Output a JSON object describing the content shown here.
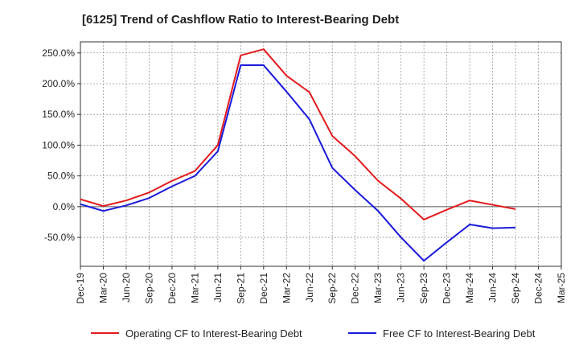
{
  "chart_data": {
    "type": "line",
    "title": "[6125]  Trend of Cashflow Ratio to Interest-Bearing Debt",
    "xlabel": "",
    "ylabel": "",
    "x": [
      "Dec-19",
      "Mar-20",
      "Jun-20",
      "Sep-20",
      "Dec-20",
      "Mar-21",
      "Jun-21",
      "Sep-21",
      "Dec-21",
      "Mar-22",
      "Jun-22",
      "Sep-22",
      "Dec-22",
      "Mar-23",
      "Jun-23",
      "Sep-23",
      "Dec-23",
      "Mar-24",
      "Jun-24",
      "Sep-24",
      "Dec-24",
      "Mar-25"
    ],
    "ylim": [
      -97,
      268
    ],
    "yticks": [
      -50,
      0,
      50,
      100,
      150,
      200,
      250
    ],
    "ytick_labels": [
      "-50.0%",
      "0.0%",
      "50.0%",
      "100.0%",
      "150.0%",
      "200.0%",
      "250.0%"
    ],
    "grid": true,
    "legend_position": "bottom",
    "series": [
      {
        "name": "Operating CF to Interest-Bearing Debt",
        "color": "#e31a1c",
        "values": [
          12,
          1,
          10,
          23,
          42,
          58,
          100,
          246,
          256,
          213,
          186,
          115,
          82,
          42,
          13,
          -21,
          -5,
          10,
          3,
          -4,
          null,
          null
        ]
      },
      {
        "name": "Free CF to Interest-Bearing Debt",
        "color": "#1a1adb",
        "values": [
          4,
          -7,
          2,
          14,
          33,
          50,
          90,
          230,
          230,
          187,
          142,
          63,
          27,
          -7,
          -50,
          -88,
          -58,
          -29,
          -35,
          -34,
          null,
          null
        ]
      }
    ]
  }
}
